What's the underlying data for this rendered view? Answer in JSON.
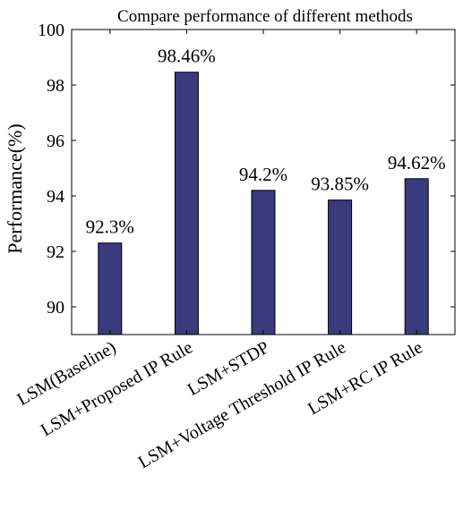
{
  "chart_data": {
    "type": "bar",
    "title": "Compare performance of different methods",
    "xlabel": "",
    "ylabel": "Performance(%)",
    "ylim": [
      89,
      100
    ],
    "yticks": [
      90,
      92,
      94,
      96,
      98,
      100
    ],
    "ytick_labels": [
      "90",
      "92",
      "94",
      "96",
      "98",
      "100"
    ],
    "grid": false,
    "legend": "none",
    "categories": [
      "LSM(Baseline)",
      "LSM+Proposed IP Rule",
      "LSM+STDP",
      "LSM+Voltage Threshold IP Rule",
      "LSM+RC IP Rule"
    ],
    "values": [
      92.3,
      98.46,
      94.2,
      93.85,
      94.62
    ],
    "data_labels": [
      "92.3%",
      "98.46%",
      "94.2%",
      "93.85%",
      "94.62%"
    ],
    "bar_color": "#3a3a7e"
  }
}
